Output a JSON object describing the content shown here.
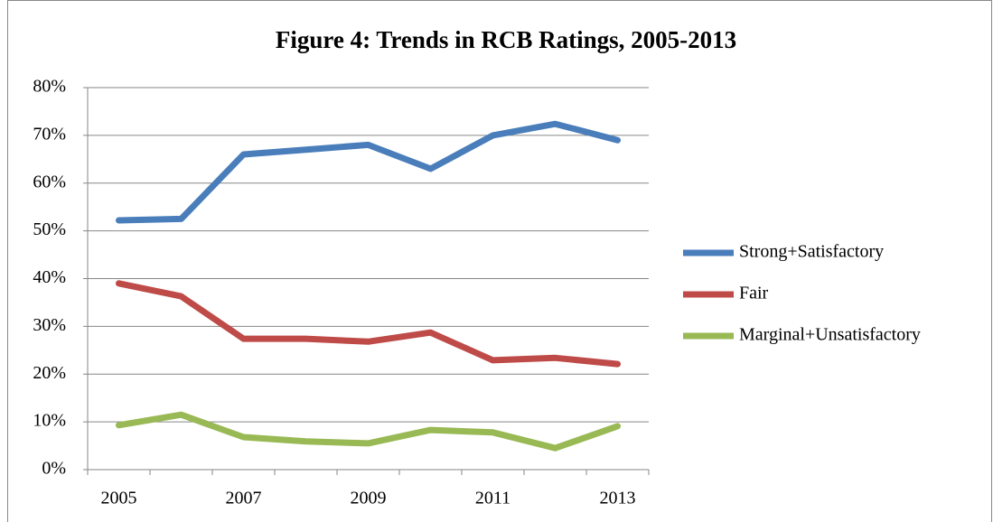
{
  "chart_data": {
    "type": "line",
    "title": "Figure 4: Trends in RCB Ratings, 2005-2013",
    "categories": [
      "2005",
      null,
      "2007",
      null,
      "2009",
      null,
      "2011",
      null,
      "2013"
    ],
    "series": [
      {
        "name": "Strong+Satisfactory",
        "color": "#4a7ebb",
        "values": [
          52.2,
          52.5,
          66,
          67,
          68,
          63,
          70,
          72.4,
          69
        ]
      },
      {
        "name": "Fair",
        "color": "#be4b48",
        "values": [
          39,
          36.3,
          27.4,
          27.4,
          26.8,
          28.7,
          22.9,
          23.4,
          22.1
        ]
      },
      {
        "name": "Marginal+Unsatisfactory",
        "color": "#98b954",
        "values": [
          9.3,
          11.5,
          6.8,
          5.9,
          5.5,
          8.3,
          7.8,
          4.5,
          9.1
        ]
      }
    ],
    "ylim": [
      0,
      80
    ],
    "yticks": [
      {
        "value": 0,
        "label": "0%"
      },
      {
        "value": 10,
        "label": "10%"
      },
      {
        "value": 20,
        "label": "20%"
      },
      {
        "value": 30,
        "label": "30%"
      },
      {
        "value": 40,
        "label": "40%"
      },
      {
        "value": 50,
        "label": "50%"
      },
      {
        "value": 60,
        "label": "60%"
      },
      {
        "value": 70,
        "label": "70%"
      },
      {
        "value": 80,
        "label": "80%"
      }
    ],
    "grid": true,
    "legend": "right"
  }
}
